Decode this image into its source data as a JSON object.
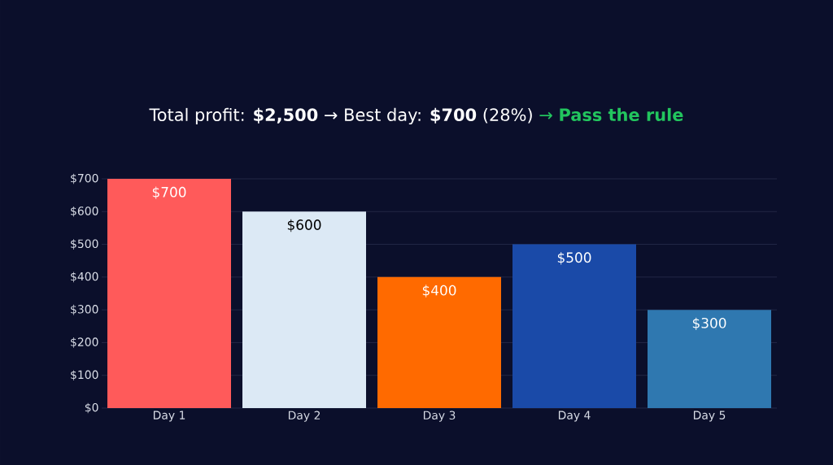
{
  "chart_data": {
    "type": "bar",
    "title": "Total profit: **$2,500** → Best day: **$700** (28%)",
    "annotations": [
      "→ **Pass the rule**"
    ],
    "categories": [
      "Day 1",
      "Day 2",
      "Day 3",
      "Day 4",
      "Day 5"
    ],
    "values": [
      700,
      600,
      400,
      500,
      300
    ],
    "colors": [
      "#ff5a5a",
      "#dce9f5",
      "#ff6a00",
      "#1a4aa8",
      "#2f78b0"
    ],
    "value_labels": [
      "$700",
      "$600",
      "$400",
      "$500",
      "$300"
    ],
    "ylim": [
      0,
      700
    ],
    "yticks": [
      {
        "value": 0,
        "label": "$0"
      },
      {
        "value": 100,
        "label": "$100"
      },
      {
        "value": 200,
        "label": "$200"
      },
      {
        "value": 300,
        "label": "$300"
      },
      {
        "value": 400,
        "label": "$400"
      },
      {
        "value": 500,
        "label": "$500"
      },
      {
        "value": 600,
        "label": "$600"
      },
      {
        "value": 700,
        "label": "$700"
      }
    ],
    "grid": "y"
  }
}
